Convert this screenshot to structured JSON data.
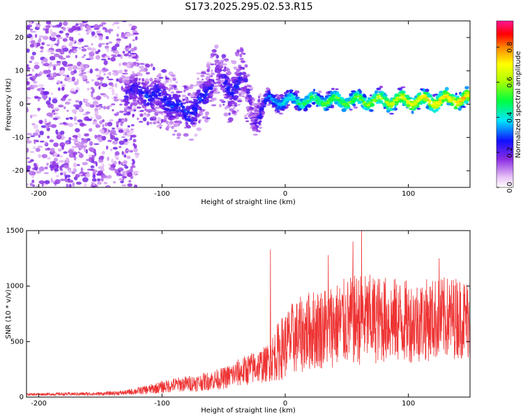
{
  "title": "S173.2025.295.02.53.R15",
  "colors": {
    "signal": "#ee3333",
    "axis": "#000000",
    "background": "#ffffff"
  },
  "chart_data": [
    {
      "type": "heatmap",
      "name": "spectrogram",
      "xlabel": "Height of straight line (km)",
      "ylabel": "Frequency (Hz)",
      "xlim": [
        -210,
        150
      ],
      "ylim": [
        -25,
        25
      ],
      "xticks": [
        -200,
        -100,
        0,
        100
      ],
      "xtick_labels": [
        "-200",
        "-100",
        "0",
        "100"
      ],
      "yticks": [
        -20,
        -10,
        0,
        10,
        20
      ],
      "ytick_labels": [
        "-20",
        "-10",
        "0",
        "10",
        "20"
      ],
      "colorbar": {
        "label": "Normalized spectral amplitude",
        "range": [
          0,
          0.95
        ],
        "ticks": [
          0,
          0.2,
          0.4,
          0.6,
          0.8
        ],
        "tick_labels": [
          "0.0",
          "0.2",
          "0.4",
          "0.6",
          "0.8"
        ]
      },
      "ridge": [
        {
          "x": -125,
          "f": 4,
          "a": 0.25
        },
        {
          "x": -110,
          "f": 3,
          "a": 0.3
        },
        {
          "x": -95,
          "f": 1,
          "a": 0.3
        },
        {
          "x": -80,
          "f": -3,
          "a": 0.3
        },
        {
          "x": -65,
          "f": 2,
          "a": 0.3
        },
        {
          "x": -55,
          "f": 10,
          "a": 0.2
        },
        {
          "x": -45,
          "f": 3,
          "a": 0.3
        },
        {
          "x": -35,
          "f": 9,
          "a": 0.25
        },
        {
          "x": -25,
          "f": -5,
          "a": 0.2
        },
        {
          "x": -15,
          "f": 1,
          "a": 0.35
        },
        {
          "x": 0,
          "f": 1,
          "a": 0.45
        },
        {
          "x": 20,
          "f": 1,
          "a": 0.55
        },
        {
          "x": 40,
          "f": 1,
          "a": 0.6
        },
        {
          "x": 60,
          "f": 1,
          "a": 0.62
        },
        {
          "x": 80,
          "f": 1,
          "a": 0.68
        },
        {
          "x": 100,
          "f": 1,
          "a": 0.75
        },
        {
          "x": 120,
          "f": 1,
          "a": 0.8
        },
        {
          "x": 140,
          "f": 1.5,
          "a": 0.82
        },
        {
          "x": 150,
          "f": 1.5,
          "a": 0.8
        }
      ]
    },
    {
      "type": "line",
      "name": "snr",
      "xlabel": "Height of straight line (km)",
      "ylabel": "SNR (10 * v/v)",
      "xlim": [
        -210,
        150
      ],
      "ylim": [
        0,
        1500
      ],
      "xticks": [
        -200,
        -100,
        0,
        100
      ],
      "xtick_labels": [
        "-200",
        "-100",
        "0",
        "100"
      ],
      "yticks": [
        0,
        500,
        1000,
        1500
      ],
      "ytick_labels": [
        "0",
        "500",
        "1000",
        "1500"
      ],
      "envelope": {
        "x": [
          -210,
          -150,
          -130,
          -110,
          -90,
          -70,
          -50,
          -30,
          -15,
          -5,
          5,
          20,
          40,
          60,
          80,
          100,
          120,
          140,
          150
        ],
        "mean": [
          25,
          30,
          40,
          70,
          110,
          130,
          170,
          250,
          300,
          420,
          520,
          600,
          650,
          700,
          700,
          680,
          700,
          720,
          700
        ],
        "spread": [
          10,
          15,
          20,
          40,
          60,
          70,
          90,
          130,
          150,
          250,
          300,
          330,
          350,
          380,
          360,
          340,
          340,
          340,
          330
        ]
      },
      "peaks": [
        {
          "x": -12,
          "y": 1330
        },
        {
          "x": 55,
          "y": 1400
        },
        {
          "x": 62,
          "y": 1540
        },
        {
          "x": 35,
          "y": 1280
        },
        {
          "x": 125,
          "y": 1250
        }
      ]
    }
  ]
}
